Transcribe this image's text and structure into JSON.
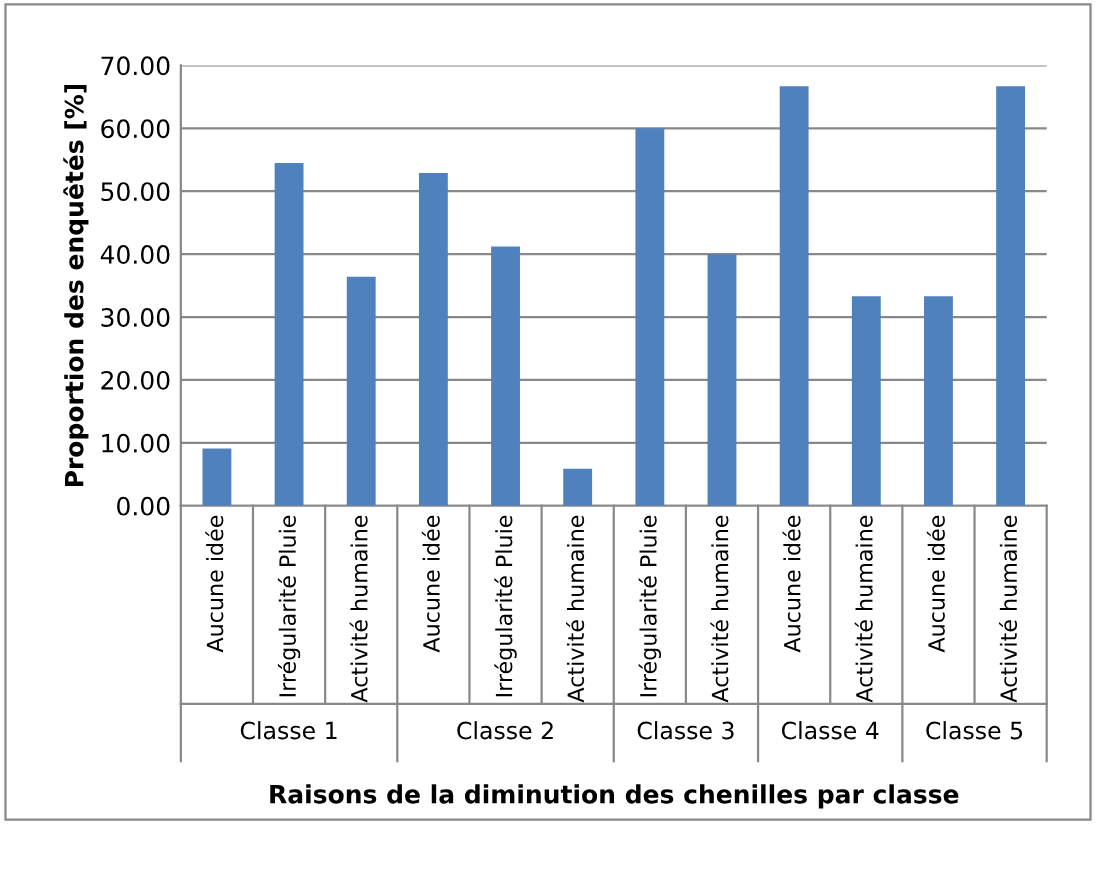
{
  "chart_data": {
    "type": "bar",
    "xlabel": "Raisons de la diminution des chenilles par classe",
    "ylabel": "Proportion des enquêtés [%]",
    "categories": [
      "Aucune idée",
      "Irrégularité Pluie",
      "Activité humaine",
      "Aucune idée",
      "Irrégularité Pluie",
      "Activité humaine",
      "Irrégularité Pluie",
      "Activité humaine",
      "Aucune idée",
      "Activité humaine",
      "Aucune idée",
      "Activité humaine"
    ],
    "annotations": [
      "Classe 1",
      "Classe 2",
      "Classe 3",
      "Classe 4",
      "Classe 5"
    ],
    "values": [
      9.1,
      54.5,
      36.4,
      52.9,
      41.2,
      5.9,
      60.0,
      40.0,
      66.7,
      33.3,
      33.3,
      66.7
    ],
    "color": "#4f81bd",
    "ylim": [
      0,
      70
    ],
    "yticks": [
      {
        "value": 0,
        "label": "0.00"
      },
      {
        "value": 10,
        "label": "10.00"
      },
      {
        "value": 20,
        "label": "20.00"
      },
      {
        "value": 30,
        "label": "30.00"
      },
      {
        "value": 40,
        "label": "40.00"
      },
      {
        "value": 50,
        "label": "50.00"
      },
      {
        "value": 60,
        "label": "60.00"
      },
      {
        "value": 70,
        "label": "70.00"
      }
    ],
    "grid": "y"
  }
}
